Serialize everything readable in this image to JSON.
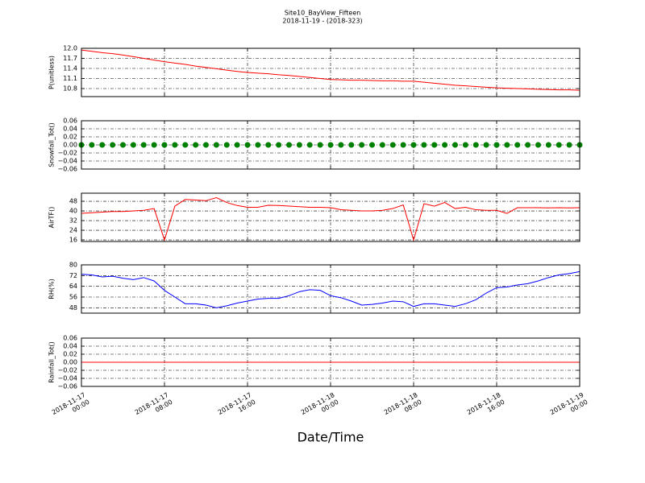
{
  "chart_data": [
    {
      "type": "line",
      "title": "Site10_BayView_Fifteen",
      "subtitle": "2018-11-19 - (2018-323)",
      "ylabel": "P(unitless)",
      "color": "#ff0000",
      "grid": true,
      "x": [
        "2018-11-17 00:00",
        "2018-11-17 01:00",
        "2018-11-17 02:00",
        "2018-11-17 03:00",
        "2018-11-17 04:00",
        "2018-11-17 05:00",
        "2018-11-17 06:00",
        "2018-11-17 07:00",
        "2018-11-17 08:00",
        "2018-11-17 09:00",
        "2018-11-17 10:00",
        "2018-11-17 11:00",
        "2018-11-17 12:00",
        "2018-11-17 13:00",
        "2018-11-17 14:00",
        "2018-11-17 15:00",
        "2018-11-17 16:00",
        "2018-11-17 17:00",
        "2018-11-17 18:00",
        "2018-11-17 19:00",
        "2018-11-17 20:00",
        "2018-11-17 21:00",
        "2018-11-17 22:00",
        "2018-11-17 23:00",
        "2018-11-18 00:00",
        "2018-11-18 01:00",
        "2018-11-18 02:00",
        "2018-11-18 03:00",
        "2018-11-18 04:00",
        "2018-11-18 05:00",
        "2018-11-18 06:00",
        "2018-11-18 07:00",
        "2018-11-18 08:00",
        "2018-11-18 09:00",
        "2018-11-18 10:00",
        "2018-11-18 11:00",
        "2018-11-18 12:00",
        "2018-11-18 13:00",
        "2018-11-18 14:00",
        "2018-11-18 15:00",
        "2018-11-18 16:00",
        "2018-11-18 17:00",
        "2018-11-18 18:00",
        "2018-11-18 19:00",
        "2018-11-18 20:00",
        "2018-11-18 21:00",
        "2018-11-18 22:00",
        "2018-11-18 23:00",
        "2018-11-19 00:00"
      ],
      "values": [
        11.95,
        11.91,
        11.87,
        11.84,
        11.8,
        11.75,
        11.7,
        11.65,
        11.6,
        11.56,
        11.52,
        11.47,
        11.43,
        11.39,
        11.35,
        11.31,
        11.28,
        11.26,
        11.24,
        11.21,
        11.19,
        11.16,
        11.13,
        11.1,
        11.07,
        11.06,
        11.05,
        11.05,
        11.04,
        11.03,
        11.03,
        11.02,
        11.02,
        10.99,
        10.96,
        10.93,
        10.9,
        10.88,
        10.86,
        10.84,
        10.82,
        10.81,
        10.8,
        10.79,
        10.78,
        10.77,
        10.76,
        10.76,
        10.75
      ],
      "xlim": [
        "2018-11-17 00:00",
        "2018-11-19 00:00"
      ],
      "xticks": [
        "2018-11-17 00:00",
        "2018-11-17 08:00",
        "2018-11-17 16:00",
        "2018-11-18 00:00",
        "2018-11-18 08:00",
        "2018-11-18 16:00",
        "2018-11-19 00:00"
      ],
      "ylim": [
        10.56,
        12.0
      ],
      "yticks": [
        {
          "value": 12,
          "label": "12.0"
        },
        11.7,
        11.4,
        11.1,
        10.8
      ]
    },
    {
      "type": "scatter",
      "ylabel": "Snowfall_Tot()",
      "color": "#008000",
      "grid": true,
      "x": [
        "2018-11-17 00:00",
        "2018-11-17 01:00",
        "2018-11-17 02:00",
        "2018-11-17 03:00",
        "2018-11-17 04:00",
        "2018-11-17 05:00",
        "2018-11-17 06:00",
        "2018-11-17 07:00",
        "2018-11-17 08:00",
        "2018-11-17 09:00",
        "2018-11-17 10:00",
        "2018-11-17 11:00",
        "2018-11-17 12:00",
        "2018-11-17 13:00",
        "2018-11-17 14:00",
        "2018-11-17 15:00",
        "2018-11-17 16:00",
        "2018-11-17 17:00",
        "2018-11-17 18:00",
        "2018-11-17 19:00",
        "2018-11-17 20:00",
        "2018-11-17 21:00",
        "2018-11-17 22:00",
        "2018-11-17 23:00",
        "2018-11-18 00:00",
        "2018-11-18 01:00",
        "2018-11-18 02:00",
        "2018-11-18 03:00",
        "2018-11-18 04:00",
        "2018-11-18 05:00",
        "2018-11-18 06:00",
        "2018-11-18 07:00",
        "2018-11-18 08:00",
        "2018-11-18 09:00",
        "2018-11-18 10:00",
        "2018-11-18 11:00",
        "2018-11-18 12:00",
        "2018-11-18 13:00",
        "2018-11-18 14:00",
        "2018-11-18 15:00",
        "2018-11-18 16:00",
        "2018-11-18 17:00",
        "2018-11-18 18:00",
        "2018-11-18 19:00",
        "2018-11-18 20:00",
        "2018-11-18 21:00",
        "2018-11-18 22:00",
        "2018-11-18 23:00",
        "2018-11-19 00:00"
      ],
      "values": [
        0,
        0,
        0,
        0,
        0,
        0,
        0,
        0,
        0,
        0,
        0,
        0,
        0,
        0,
        0,
        0,
        0,
        0,
        0,
        0,
        0,
        0,
        0,
        0,
        0,
        0,
        0,
        0,
        0,
        0,
        0,
        0,
        0,
        0,
        0,
        0,
        0,
        0,
        0,
        0,
        0,
        0,
        0,
        0,
        0,
        0,
        0,
        0,
        0
      ],
      "xlim": [
        "2018-11-17 00:00",
        "2018-11-19 00:00"
      ],
      "xticks": [
        "2018-11-17 00:00",
        "2018-11-17 08:00",
        "2018-11-17 16:00",
        "2018-11-18 00:00",
        "2018-11-18 08:00",
        "2018-11-18 16:00",
        "2018-11-19 00:00"
      ],
      "ylim": [
        -0.06,
        0.06
      ],
      "yticks": [
        0.06,
        0.04,
        0.02,
        {
          "value": 0,
          "label": "0.00"
        },
        {
          "value": -0.02,
          "label": "−0.02"
        },
        {
          "value": -0.04,
          "label": "−0.04"
        },
        {
          "value": -0.06,
          "label": "−0.06"
        }
      ]
    },
    {
      "type": "line",
      "ylabel": "AirTF()",
      "color": "#ff0000",
      "grid": true,
      "x": [
        "2018-11-17 00:00",
        "2018-11-17 01:00",
        "2018-11-17 02:00",
        "2018-11-17 03:00",
        "2018-11-17 04:00",
        "2018-11-17 05:00",
        "2018-11-17 06:00",
        "2018-11-17 07:00",
        "2018-11-17 08:00",
        "2018-11-17 09:00",
        "2018-11-17 10:00",
        "2018-11-17 11:00",
        "2018-11-17 12:00",
        "2018-11-17 13:00",
        "2018-11-17 14:00",
        "2018-11-17 15:00",
        "2018-11-17 16:00",
        "2018-11-17 17:00",
        "2018-11-17 18:00",
        "2018-11-17 19:00",
        "2018-11-17 20:00",
        "2018-11-17 21:00",
        "2018-11-17 22:00",
        "2018-11-17 23:00",
        "2018-11-18 00:00",
        "2018-11-18 01:00",
        "2018-11-18 02:00",
        "2018-11-18 03:00",
        "2018-11-18 04:00",
        "2018-11-18 05:00",
        "2018-11-18 06:00",
        "2018-11-18 07:00",
        "2018-11-18 08:00",
        "2018-11-18 09:00",
        "2018-11-18 10:00",
        "2018-11-18 11:00",
        "2018-11-18 12:00",
        "2018-11-18 13:00",
        "2018-11-18 14:00",
        "2018-11-18 15:00",
        "2018-11-18 16:00",
        "2018-11-18 17:00",
        "2018-11-18 18:00",
        "2018-11-18 19:00",
        "2018-11-18 20:00",
        "2018-11-18 21:00",
        "2018-11-18 22:00",
        "2018-11-18 23:00",
        "2018-11-19 00:00"
      ],
      "values": [
        38,
        38.5,
        39,
        39.5,
        39.5,
        40,
        40.5,
        42,
        16,
        44,
        49.5,
        49,
        48.5,
        51,
        47,
        44.5,
        43,
        43,
        44.7,
        44.5,
        44,
        43.5,
        43,
        43,
        42.7,
        41,
        40.5,
        40,
        40,
        40.5,
        42,
        45,
        16,
        46,
        44,
        47,
        42,
        43,
        41,
        40.5,
        40.5,
        38,
        42.7,
        42.7,
        42.7,
        42.5,
        42.7,
        42.5,
        42.7
      ],
      "xlim": [
        "2018-11-17 00:00",
        "2018-11-19 00:00"
      ],
      "xticks": [
        "2018-11-17 00:00",
        "2018-11-17 08:00",
        "2018-11-17 16:00",
        "2018-11-18 00:00",
        "2018-11-18 08:00",
        "2018-11-18 16:00",
        "2018-11-19 00:00"
      ],
      "ylim": [
        14.7,
        54.7
      ],
      "yticks": [
        48,
        40,
        32,
        24,
        16
      ]
    },
    {
      "type": "line",
      "ylabel": "RH(%)",
      "color": "#0000ff",
      "grid": true,
      "x": [
        "2018-11-17 00:00",
        "2018-11-17 01:00",
        "2018-11-17 02:00",
        "2018-11-17 03:00",
        "2018-11-17 04:00",
        "2018-11-17 05:00",
        "2018-11-17 06:00",
        "2018-11-17 07:00",
        "2018-11-17 08:00",
        "2018-11-17 09:00",
        "2018-11-17 10:00",
        "2018-11-17 11:00",
        "2018-11-17 12:00",
        "2018-11-17 13:00",
        "2018-11-17 14:00",
        "2018-11-17 15:00",
        "2018-11-17 16:00",
        "2018-11-17 17:00",
        "2018-11-17 18:00",
        "2018-11-17 19:00",
        "2018-11-17 20:00",
        "2018-11-17 21:00",
        "2018-11-17 22:00",
        "2018-11-17 23:00",
        "2018-11-18 00:00",
        "2018-11-18 01:00",
        "2018-11-18 02:00",
        "2018-11-18 03:00",
        "2018-11-18 04:00",
        "2018-11-18 05:00",
        "2018-11-18 06:00",
        "2018-11-18 07:00",
        "2018-11-18 08:00",
        "2018-11-18 09:00",
        "2018-11-18 10:00",
        "2018-11-18 11:00",
        "2018-11-18 12:00",
        "2018-11-18 13:00",
        "2018-11-18 14:00",
        "2018-11-18 15:00",
        "2018-11-18 16:00",
        "2018-11-18 17:00",
        "2018-11-18 18:00",
        "2018-11-18 19:00",
        "2018-11-18 20:00",
        "2018-11-18 21:00",
        "2018-11-18 22:00",
        "2018-11-18 23:00",
        "2018-11-19 00:00"
      ],
      "values": [
        73,
        72.5,
        71,
        71.5,
        70,
        69,
        70.5,
        68,
        61,
        56,
        51,
        51,
        50,
        48,
        49.5,
        51.5,
        53,
        54.5,
        55,
        55,
        57,
        60,
        61.5,
        61,
        57,
        55.5,
        53,
        50,
        50.5,
        51.5,
        53,
        52.5,
        49,
        51,
        51,
        50,
        49,
        51,
        54,
        59,
        63,
        63.5,
        65,
        66,
        68,
        70.5,
        72.5,
        73.5,
        75
      ],
      "xlim": [
        "2018-11-17 00:00",
        "2018-11-19 00:00"
      ],
      "xticks": [
        "2018-11-17 00:00",
        "2018-11-17 08:00",
        "2018-11-17 16:00",
        "2018-11-18 00:00",
        "2018-11-18 08:00",
        "2018-11-18 16:00",
        "2018-11-19 00:00"
      ],
      "ylim": [
        44,
        80
      ],
      "yticks": [
        80,
        72,
        64,
        56,
        48
      ]
    },
    {
      "type": "line",
      "ylabel": "Rainfall_Tot()",
      "xlabel": "Date/Time",
      "color": "#ff0000",
      "grid": true,
      "x": [
        "2018-11-17 00:00",
        "2018-11-17 01:00",
        "2018-11-17 02:00",
        "2018-11-17 03:00",
        "2018-11-17 04:00",
        "2018-11-17 05:00",
        "2018-11-17 06:00",
        "2018-11-17 07:00",
        "2018-11-17 08:00",
        "2018-11-17 09:00",
        "2018-11-17 10:00",
        "2018-11-17 11:00",
        "2018-11-17 12:00",
        "2018-11-17 13:00",
        "2018-11-17 14:00",
        "2018-11-17 15:00",
        "2018-11-17 16:00",
        "2018-11-17 17:00",
        "2018-11-17 18:00",
        "2018-11-17 19:00",
        "2018-11-17 20:00",
        "2018-11-17 21:00",
        "2018-11-17 22:00",
        "2018-11-17 23:00",
        "2018-11-18 00:00",
        "2018-11-18 01:00",
        "2018-11-18 02:00",
        "2018-11-18 03:00",
        "2018-11-18 04:00",
        "2018-11-18 05:00",
        "2018-11-18 06:00",
        "2018-11-18 07:00",
        "2018-11-18 08:00",
        "2018-11-18 09:00",
        "2018-11-18 10:00",
        "2018-11-18 11:00",
        "2018-11-18 12:00",
        "2018-11-18 13:00",
        "2018-11-18 14:00",
        "2018-11-18 15:00",
        "2018-11-18 16:00",
        "2018-11-18 17:00",
        "2018-11-18 18:00",
        "2018-11-18 19:00",
        "2018-11-18 20:00",
        "2018-11-18 21:00",
        "2018-11-18 22:00",
        "2018-11-18 23:00",
        "2018-11-19 00:00"
      ],
      "values": [
        0,
        0,
        0,
        0,
        0,
        0,
        0,
        0,
        0,
        0,
        0,
        0,
        0,
        0,
        0,
        0,
        0,
        0,
        0,
        0,
        0,
        0,
        0,
        0,
        0,
        0,
        0,
        0,
        0,
        0,
        0,
        0,
        0,
        0,
        0,
        0,
        0,
        0,
        0,
        0,
        0,
        0,
        0,
        0,
        0,
        0,
        0,
        0,
        0
      ],
      "xlim": [
        "2018-11-17 00:00",
        "2018-11-19 00:00"
      ],
      "xticks": [
        "2018-11-17 00:00",
        "2018-11-17 08:00",
        "2018-11-17 16:00",
        "2018-11-18 00:00",
        "2018-11-18 08:00",
        "2018-11-18 16:00",
        "2018-11-19 00:00"
      ],
      "ylim": [
        -0.06,
        0.06
      ],
      "yticks": [
        0.06,
        0.04,
        0.02,
        {
          "value": 0,
          "label": "0.00"
        },
        {
          "value": -0.02,
          "label": "−0.02"
        },
        {
          "value": -0.04,
          "label": "−0.04"
        },
        {
          "value": -0.06,
          "label": "−0.06"
        }
      ]
    }
  ]
}
